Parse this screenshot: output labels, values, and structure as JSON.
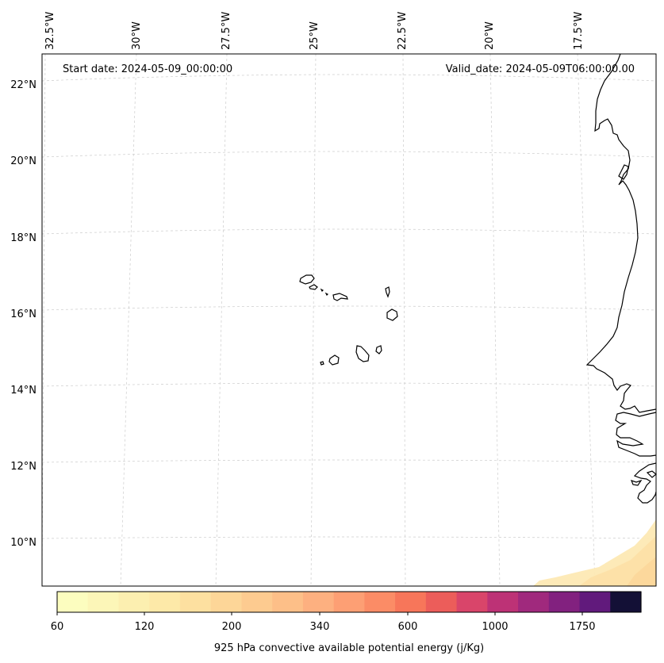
{
  "map": {
    "start_label": "Start date: 2024-05-09_00:00:00",
    "valid_label": "Valid_date: 2024-05-09T06:00:00.00",
    "lon_labels": [
      "32.5°W",
      "30°W",
      "27.5°W",
      "25°W",
      "22.5°W",
      "20°W",
      "17.5°W"
    ],
    "lat_labels": [
      "22°N",
      "20°N",
      "18°N",
      "16°N",
      "14°N",
      "12°N",
      "10°N"
    ],
    "land_features": [
      "Cabo Verde islands",
      "West African coastline"
    ],
    "field_colors": [
      "#fde9b4",
      "#fde0a6",
      "#fcd79a"
    ]
  },
  "colorbar": {
    "label": "925 hPa convective available potential energy (j/Kg)",
    "tick_labels": [
      "60",
      "120",
      "200",
      "340",
      "600",
      "1000",
      "1750"
    ],
    "colors": [
      "#fcfdbf",
      "#fcf6b8",
      "#fcefb0",
      "#fde9a8",
      "#fde0a0",
      "#fdd698",
      "#fdcb90",
      "#fdbf88",
      "#fdb080",
      "#fd9f74",
      "#fb8c66",
      "#f7765a",
      "#ec5d5a",
      "#d9456a",
      "#bd3276",
      "#a0297d",
      "#82217f",
      "#611a7c",
      "#131036"
    ]
  }
}
